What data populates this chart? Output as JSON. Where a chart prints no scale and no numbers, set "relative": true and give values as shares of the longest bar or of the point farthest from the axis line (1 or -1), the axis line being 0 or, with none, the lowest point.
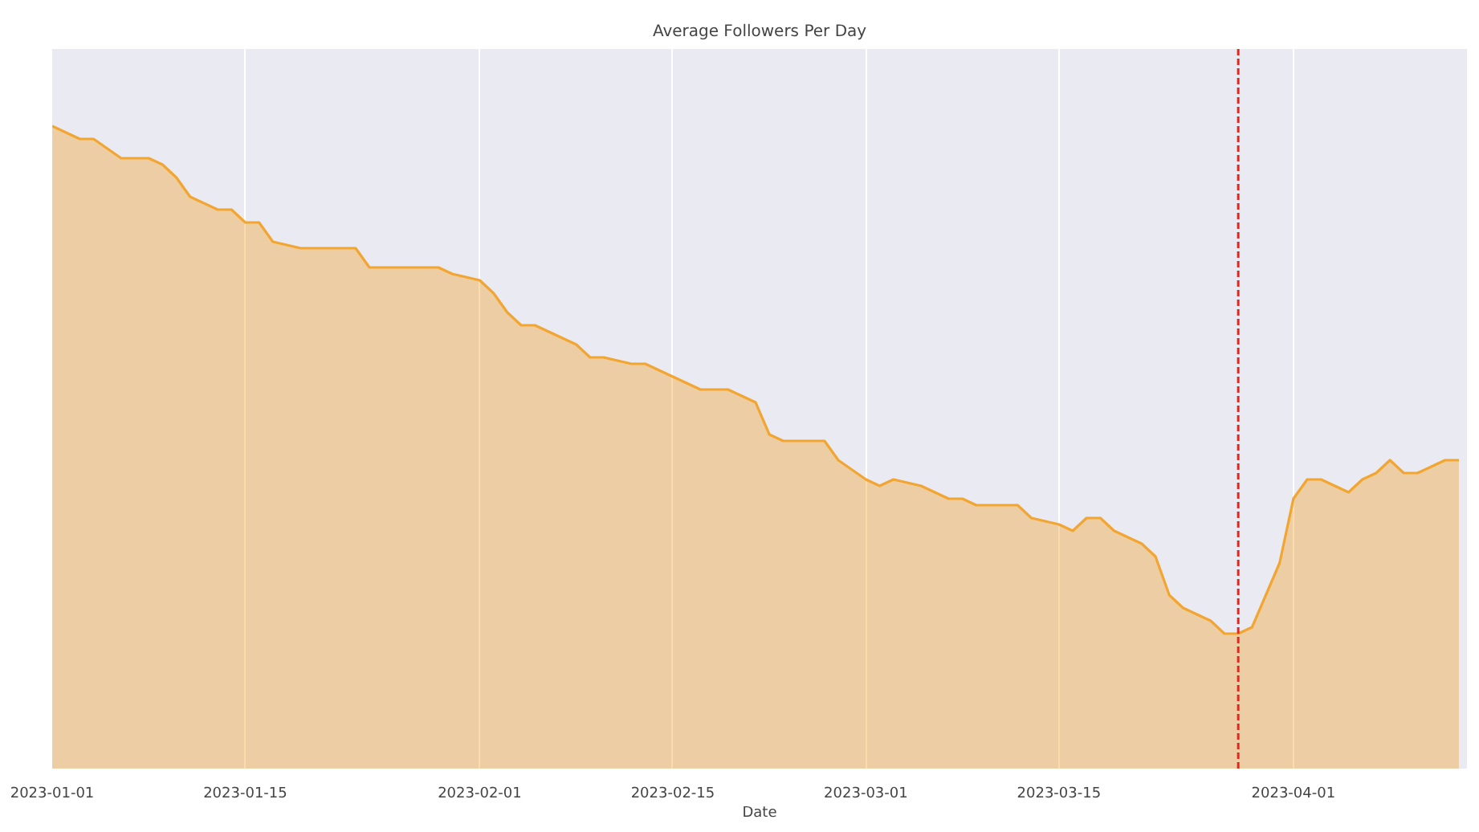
{
  "chart_data": {
    "type": "area",
    "title": "Average Followers Per Day",
    "xlabel": "Date",
    "relative": true,
    "x": [
      "2023-01-01",
      "2023-01-02",
      "2023-01-03",
      "2023-01-04",
      "2023-01-06",
      "2023-01-07",
      "2023-01-08",
      "2023-01-09",
      "2023-01-10",
      "2023-01-11",
      "2023-01-13",
      "2023-01-14",
      "2023-01-15",
      "2023-01-16",
      "2023-01-17",
      "2023-01-19",
      "2023-01-20",
      "2023-01-22",
      "2023-01-23",
      "2023-01-24",
      "2023-01-25",
      "2023-01-26",
      "2023-01-27",
      "2023-01-29",
      "2023-01-30",
      "2023-02-01",
      "2023-02-02",
      "2023-02-03",
      "2023-02-04",
      "2023-02-05",
      "2023-02-06",
      "2023-02-07",
      "2023-02-08",
      "2023-02-09",
      "2023-02-10",
      "2023-02-12",
      "2023-02-13",
      "2023-02-15",
      "2023-02-16",
      "2023-02-17",
      "2023-02-19",
      "2023-02-21",
      "2023-02-22",
      "2023-02-23",
      "2023-02-25",
      "2023-02-26",
      "2023-02-27",
      "2023-03-01",
      "2023-03-02",
      "2023-03-03",
      "2023-03-05",
      "2023-03-06",
      "2023-03-07",
      "2023-03-08",
      "2023-03-09",
      "2023-03-10",
      "2023-03-11",
      "2023-03-12",
      "2023-03-13",
      "2023-03-15",
      "2023-03-16",
      "2023-03-17",
      "2023-03-18",
      "2023-03-19",
      "2023-03-20",
      "2023-03-21",
      "2023-03-22",
      "2023-03-23",
      "2023-03-24",
      "2023-03-25",
      "2023-03-26",
      "2023-03-27",
      "2023-03-28",
      "2023-03-29",
      "2023-03-31",
      "2023-04-01",
      "2023-04-02",
      "2023-04-03",
      "2023-04-04",
      "2023-04-05",
      "2023-04-06",
      "2023-04-07",
      "2023-04-08",
      "2023-04-09",
      "2023-04-10",
      "2023-04-11",
      "2023-04-12",
      "2023-04-13"
    ],
    "series": [
      {
        "color": "#f2a530",
        "values": [
          1.0,
          0.99,
          0.98,
          0.98,
          0.95,
          0.95,
          0.95,
          0.94,
          0.92,
          0.89,
          0.87,
          0.87,
          0.85,
          0.85,
          0.82,
          0.81,
          0.81,
          0.81,
          0.81,
          0.78,
          0.78,
          0.78,
          0.78,
          0.78,
          0.77,
          0.76,
          0.74,
          0.71,
          0.69,
          0.69,
          0.68,
          0.67,
          0.66,
          0.64,
          0.64,
          0.63,
          0.63,
          0.61,
          0.6,
          0.59,
          0.59,
          0.57,
          0.52,
          0.51,
          0.51,
          0.51,
          0.48,
          0.45,
          0.44,
          0.45,
          0.44,
          0.43,
          0.42,
          0.42,
          0.41,
          0.41,
          0.41,
          0.41,
          0.39,
          0.38,
          0.37,
          0.39,
          0.39,
          0.37,
          0.36,
          0.35,
          0.33,
          0.27,
          0.25,
          0.24,
          0.23,
          0.21,
          0.21,
          0.22,
          0.32,
          0.42,
          0.45,
          0.45,
          0.44,
          0.43,
          0.45,
          0.46,
          0.48,
          0.46,
          0.46,
          0.47,
          0.48,
          0.48
        ]
      }
    ],
    "xlim": [
      "2023-01-01",
      "2023-04-13T14:00"
    ],
    "xticks": [
      {
        "value": "2023-01-01",
        "label": "2023-01-01"
      },
      {
        "value": "2023-01-15",
        "label": "2023-01-15"
      },
      {
        "value": "2023-02-01",
        "label": "2023-02-01"
      },
      {
        "value": "2023-02-15",
        "label": "2023-02-15"
      },
      {
        "value": "2023-03-01",
        "label": "2023-03-01"
      },
      {
        "value": "2023-03-15",
        "label": "2023-03-15"
      },
      {
        "value": "2023-04-01",
        "label": "2023-04-01"
      }
    ],
    "ref_lines": [
      {
        "axis": "x",
        "value": "2023-03-28",
        "color": "#e8251c",
        "line_style": "dashed"
      }
    ],
    "grid": "x"
  }
}
